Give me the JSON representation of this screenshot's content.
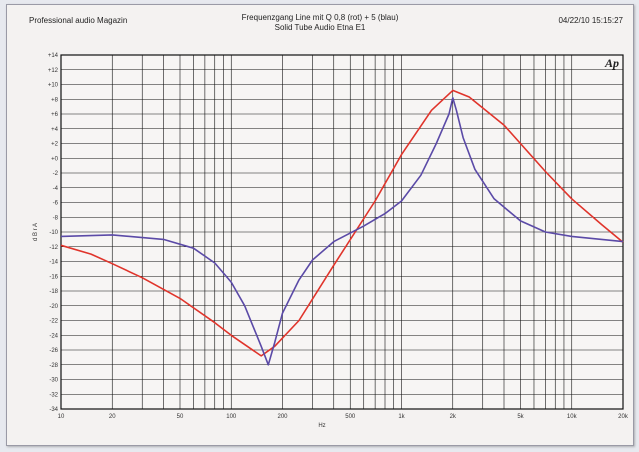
{
  "header": {
    "left": "Professional audio Magazin",
    "title_line1": "Frequenzgang Line mit Q 0,8 (rot) + 5 (blau)",
    "title_line2": "Solid Tube Audio Etna E1",
    "timestamp": "04/22/10 15:15:27"
  },
  "logo": "Ap",
  "colors": {
    "background": "#f4f2f1",
    "grid": "#111111",
    "series_red": "#e0342b",
    "series_blue": "#5b4aa7"
  },
  "chart_data": {
    "type": "line",
    "x_scale": "log",
    "xlabel": "Hz",
    "ylabel": "d B r A",
    "xlim": [
      10,
      20000
    ],
    "ylim": [
      -34,
      14
    ],
    "x_ticks": [
      "10",
      "20",
      "50",
      "100",
      "200",
      "500",
      "1k",
      "2k",
      "5k",
      "10k",
      "20k"
    ],
    "x_tick_values": [
      10,
      20,
      50,
      100,
      200,
      500,
      1000,
      2000,
      5000,
      10000,
      20000
    ],
    "y_ticks": [
      "+14",
      "+12",
      "+10",
      "+8",
      "+6",
      "+4",
      "+2",
      "+0",
      "-2",
      "-4",
      "-6",
      "-8",
      "-10",
      "-12",
      "-14",
      "-16",
      "-18",
      "-20",
      "-22",
      "-24",
      "-26",
      "-28",
      "-30",
      "-32",
      "-34"
    ],
    "y_tick_values": [
      14,
      12,
      10,
      8,
      6,
      4,
      2,
      0,
      -2,
      -4,
      -6,
      -8,
      -10,
      -12,
      -14,
      -16,
      -18,
      -20,
      -22,
      -24,
      -26,
      -28,
      -30,
      -32,
      -34
    ],
    "series": [
      {
        "color": "red",
        "x": [
          10,
          15,
          20,
          30,
          50,
          80,
          100,
          150,
          180,
          250,
          400,
          700,
          1000,
          1500,
          2000,
          2500,
          4000,
          7000,
          10000,
          15000,
          20000
        ],
        "y": [
          -11.8,
          -13.0,
          -14.3,
          -16.2,
          -19.0,
          -22.3,
          -24.0,
          -26.8,
          -25.5,
          -22.0,
          -14.5,
          -5.8,
          0.5,
          6.5,
          9.2,
          8.3,
          4.5,
          -1.8,
          -5.5,
          -9.0,
          -11.4
        ]
      },
      {
        "color": "blue",
        "x": [
          10,
          20,
          40,
          60,
          80,
          100,
          120,
          150,
          165,
          180,
          200,
          250,
          300,
          400,
          600,
          800,
          1000,
          1300,
          1600,
          1900,
          2000,
          2100,
          2300,
          2700,
          3500,
          5000,
          7000,
          10000,
          20000
        ],
        "y": [
          -10.6,
          -10.4,
          -11.0,
          -12.2,
          -14.2,
          -16.8,
          -20.0,
          -25.5,
          -28.0,
          -25.0,
          -21.0,
          -16.5,
          -13.8,
          -11.3,
          -9.2,
          -7.5,
          -5.8,
          -2.3,
          2.0,
          6.0,
          8.2,
          6.5,
          2.8,
          -1.5,
          -5.5,
          -8.5,
          -10.0,
          -10.6,
          -11.3
        ]
      }
    ],
    "grid": true
  }
}
